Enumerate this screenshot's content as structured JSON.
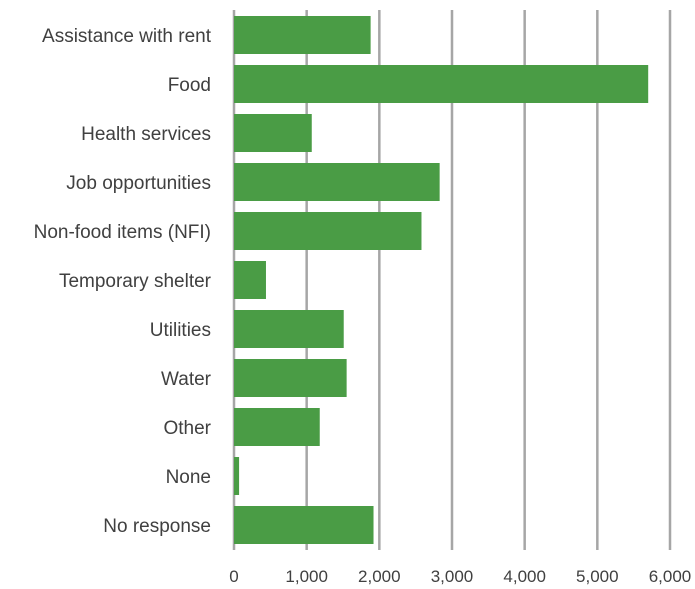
{
  "chart_data": {
    "type": "bar",
    "orientation": "horizontal",
    "title": "",
    "xlabel": "",
    "ylabel": "",
    "categories": [
      "Assistance with rent",
      "Food",
      "Health services",
      "Job opportunities",
      "Non-food items (NFI)",
      "Temporary shelter",
      "Utilities",
      "Water",
      "Other",
      "None",
      "No response"
    ],
    "values": [
      1880,
      5700,
      1070,
      2830,
      2580,
      440,
      1510,
      1550,
      1180,
      70,
      1920
    ],
    "xlim": [
      0,
      6000
    ],
    "ticks": [
      0,
      1000,
      2000,
      3000,
      4000,
      5000,
      6000
    ],
    "tick_labels": [
      "0",
      "1,000",
      "2,000",
      "3,000",
      "4,000",
      "5,000",
      "6,000"
    ],
    "grid": "vertical",
    "legend": "none",
    "bar_color": "#4a9c45"
  }
}
